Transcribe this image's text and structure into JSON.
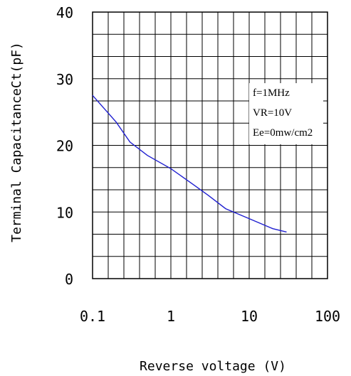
{
  "chart_data": {
    "type": "line",
    "xlabel": "Reverse voltage (V)",
    "ylabel": "Terminal CapacitanceCt(pF)",
    "x_scale": "log",
    "xlim": [
      0.1,
      100
    ],
    "ylim": [
      0,
      40
    ],
    "grid": true,
    "x_ticks": [
      "0.1",
      "1",
      "10",
      "100"
    ],
    "y_ticks": [
      "0",
      "10",
      "20",
      "30",
      "40"
    ],
    "annotations": [
      "f=1MHz",
      "VR=10V",
      "Ee=0mw/cm2"
    ],
    "series": [
      {
        "color": "#1f1fd0",
        "x": [
          0.1,
          0.2,
          0.3,
          0.5,
          1,
          2,
          3,
          5,
          10,
          20,
          30
        ],
        "y": [
          27.5,
          23.5,
          20.5,
          18.5,
          16.5,
          14.0,
          12.5,
          10.5,
          9.0,
          7.5,
          7.0
        ]
      }
    ]
  }
}
